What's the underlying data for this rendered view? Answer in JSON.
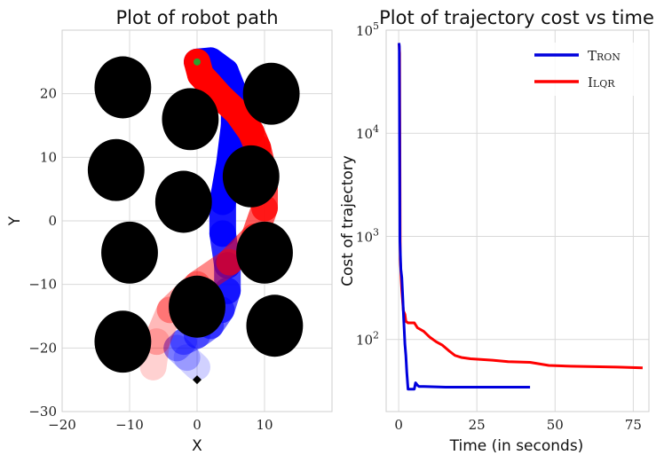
{
  "chart_data": [
    {
      "type": "scatter",
      "title": "Plot of robot path",
      "xlabel": "X",
      "ylabel": "Y",
      "xlim": [
        -20,
        20
      ],
      "ylim": [
        -30,
        30
      ],
      "xticks": [
        -20,
        -10,
        0,
        10
      ],
      "yticks": [
        -30,
        -20,
        -10,
        0,
        10,
        20
      ],
      "xtick_labels": [
        "−20",
        "−10",
        "0",
        "10"
      ],
      "ytick_labels": [
        "−30",
        "−20",
        "−10",
        "0",
        "10",
        "20"
      ],
      "grid": true,
      "obstacles": [
        {
          "x": -11,
          "y": 21
        },
        {
          "x": 11,
          "y": 20
        },
        {
          "x": -1,
          "y": 16
        },
        {
          "x": -12,
          "y": 8
        },
        {
          "x": 8,
          "y": 7
        },
        {
          "x": -2,
          "y": 3
        },
        {
          "x": -10,
          "y": -5
        },
        {
          "x": 10,
          "y": -5
        },
        {
          "x": 0,
          "y": -13.5
        },
        {
          "x": -11,
          "y": -19
        },
        {
          "x": 11.5,
          "y": -16.5
        }
      ],
      "obstacle_radius": 2,
      "start": {
        "x": 0,
        "y": 25
      },
      "goal": {
        "x": 0,
        "y": -25
      },
      "series": [
        {
          "color": "#0000ff",
          "points": [
            [
              0,
              -23
            ],
            [
              -1.5,
              -21.5
            ],
            [
              -3,
              -20
            ],
            [
              -2,
              -19
            ],
            [
              0,
              -18
            ],
            [
              2,
              -16.5
            ],
            [
              3.6,
              -14
            ],
            [
              4.5,
              -11
            ],
            [
              4.5,
              -7
            ],
            [
              3.8,
              -2
            ],
            [
              3.8,
              3
            ],
            [
              4.8,
              9
            ],
            [
              5.5,
              15
            ],
            [
              5.5,
              20
            ],
            [
              4.2,
              23.5
            ],
            [
              2,
              25.2
            ],
            [
              0,
              25
            ]
          ]
        },
        {
          "color": "#ff0000",
          "points": [
            [
              -6.5,
              -23
            ],
            [
              -6,
              -19
            ],
            [
              -4,
              -14
            ],
            [
              0,
              -10
            ],
            [
              4.8,
              -6.5
            ],
            [
              8.5,
              -2.5
            ],
            [
              10,
              2
            ],
            [
              10,
              7
            ],
            [
              9,
              11.5
            ],
            [
              8,
              14
            ],
            [
              6,
              17
            ],
            [
              3.5,
              19.5
            ],
            [
              1.8,
              21.5
            ],
            [
              0.5,
              23
            ],
            [
              0,
              25
            ]
          ]
        }
      ]
    },
    {
      "type": "line",
      "title": "Plot of trajectory cost vs time",
      "xlabel": "Time (in seconds)",
      "ylabel": "Cost of trajectory",
      "xlim": [
        -4,
        80
      ],
      "ylim": [
        20,
        100000
      ],
      "yscale": "log",
      "xticks": [
        0,
        25,
        50,
        75
      ],
      "xtick_labels": [
        "0",
        "25",
        "50",
        "75"
      ],
      "yticks": [
        100,
        1000,
        10000,
        100000
      ],
      "ytick_labels": [
        {
          "base": "10",
          "exp": "2"
        },
        {
          "base": "10",
          "exp": "3"
        },
        {
          "base": "10",
          "exp": "4"
        },
        {
          "base": "10",
          "exp": "5"
        }
      ],
      "grid": true,
      "legend_position": "top-right",
      "series": [
        {
          "name": "Tron",
          "color": "#0000dd",
          "points": [
            [
              0.1,
              75000
            ],
            [
              0.2,
              70000
            ],
            [
              0.4,
              900
            ],
            [
              0.7,
              480
            ],
            [
              1.0,
              400
            ],
            [
              1.3,
              260
            ],
            [
              1.6,
              160
            ],
            [
              2.0,
              90
            ],
            [
              2.3,
              70
            ],
            [
              2.6,
              48
            ],
            [
              3,
              33
            ],
            [
              5,
              33
            ],
            [
              5.4,
              38
            ],
            [
              6,
              36
            ],
            [
              6.5,
              35
            ],
            [
              8,
              35
            ],
            [
              15,
              34.5
            ],
            [
              25,
              34.5
            ],
            [
              35,
              34.5
            ],
            [
              42,
              34.5
            ]
          ]
        },
        {
          "name": "Ilqr",
          "color": "#ff0000",
          "points": [
            [
              0.1,
              75000
            ],
            [
              0.3,
              60000
            ],
            [
              0.5,
              600
            ],
            [
              1.0,
              300
            ],
            [
              1.5,
              190
            ],
            [
              2,
              175
            ],
            [
              2.3,
              150
            ],
            [
              3,
              145
            ],
            [
              5,
              145
            ],
            [
              6,
              130
            ],
            [
              8,
              120
            ],
            [
              10,
              105
            ],
            [
              12,
              95
            ],
            [
              14,
              88
            ],
            [
              16,
              78
            ],
            [
              18,
              70
            ],
            [
              20,
              67
            ],
            [
              23,
              65
            ],
            [
              30,
              63
            ],
            [
              35,
              61
            ],
            [
              42,
              60
            ],
            [
              45,
              58
            ],
            [
              48,
              56
            ],
            [
              55,
              55
            ],
            [
              70,
              54
            ],
            [
              78,
              53
            ]
          ]
        }
      ]
    }
  ]
}
